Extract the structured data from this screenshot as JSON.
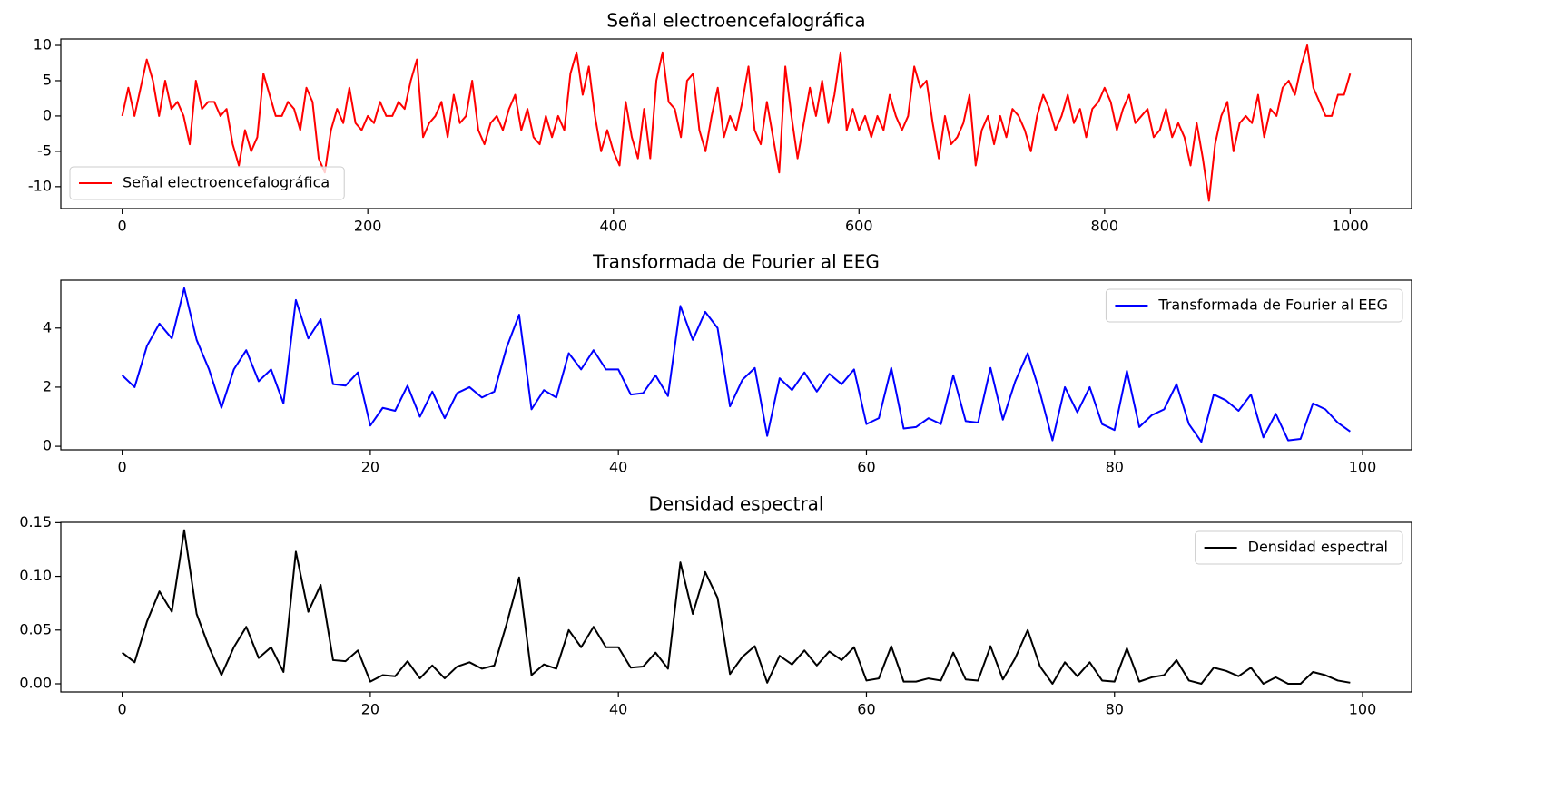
{
  "chart_data": [
    {
      "type": "line",
      "title": "Señal electroencefalográfica",
      "x": [
        0,
        5,
        10,
        15,
        20,
        25,
        30,
        35,
        40,
        45,
        50,
        55,
        60,
        65,
        70,
        75,
        80,
        85,
        90,
        95,
        100,
        105,
        110,
        115,
        120,
        125,
        130,
        135,
        140,
        145,
        150,
        155,
        160,
        165,
        170,
        175,
        180,
        185,
        190,
        195,
        200,
        205,
        210,
        215,
        220,
        225,
        230,
        235,
        240,
        245,
        250,
        255,
        260,
        265,
        270,
        275,
        280,
        285,
        290,
        295,
        300,
        305,
        310,
        315,
        320,
        325,
        330,
        335,
        340,
        345,
        350,
        355,
        360,
        365,
        370,
        375,
        380,
        385,
        390,
        395,
        400,
        405,
        410,
        415,
        420,
        425,
        430,
        435,
        440,
        445,
        450,
        455,
        460,
        465,
        470,
        475,
        480,
        485,
        490,
        495,
        500,
        505,
        510,
        515,
        520,
        525,
        530,
        535,
        540,
        545,
        550,
        555,
        560,
        565,
        570,
        575,
        580,
        585,
        590,
        595,
        600,
        605,
        610,
        615,
        620,
        625,
        630,
        635,
        640,
        645,
        650,
        655,
        660,
        665,
        670,
        675,
        680,
        685,
        690,
        695,
        700,
        705,
        710,
        715,
        720,
        725,
        730,
        735,
        740,
        745,
        750,
        755,
        760,
        765,
        770,
        775,
        780,
        785,
        790,
        795,
        800,
        805,
        810,
        815,
        820,
        825,
        830,
        835,
        840,
        845,
        850,
        855,
        860,
        865,
        870,
        875,
        880,
        885,
        890,
        895,
        900,
        905,
        910,
        915,
        920,
        925,
        930,
        935,
        940,
        945,
        950,
        955,
        960,
        965,
        970,
        975,
        980,
        985,
        990,
        995,
        1000
      ],
      "series": [
        {
          "name": "Señal electroencefalográfica",
          "color": "#ff0000",
          "values": [
            0,
            4,
            0,
            4,
            8,
            5,
            0,
            5,
            1,
            2,
            0,
            -4,
            5,
            1,
            2,
            2,
            0,
            1,
            -4,
            -7,
            -2,
            -5,
            -3,
            6,
            3,
            0,
            0,
            2,
            1,
            -2,
            4,
            2,
            -6,
            -8,
            -2,
            1,
            -1,
            4,
            -1,
            -2,
            0,
            -1,
            2,
            0,
            0,
            2,
            1,
            5,
            8,
            -3,
            -1,
            0,
            2,
            -3,
            3,
            -1,
            0,
            5,
            -2,
            -4,
            -1,
            0,
            -2,
            1,
            3,
            -2,
            1,
            -3,
            -4,
            0,
            -3,
            0,
            -2,
            6,
            9,
            3,
            7,
            0,
            -5,
            -2,
            -5,
            -7,
            2,
            -3,
            -6,
            1,
            -6,
            5,
            9,
            2,
            1,
            -3,
            5,
            6,
            -2,
            -5,
            0,
            4,
            -3,
            0,
            -2,
            2,
            7,
            -2,
            -4,
            2,
            -3,
            -8,
            7,
            0,
            -6,
            -1,
            4,
            0,
            5,
            -1,
            3,
            9,
            -2,
            1,
            -2,
            0,
            -3,
            0,
            -2,
            3,
            0,
            -2,
            0,
            7,
            4,
            5,
            -1,
            -6,
            0,
            -4,
            -3,
            -1,
            3,
            -7,
            -2,
            0,
            -4,
            0,
            -3,
            1,
            0,
            -2,
            -5,
            0,
            3,
            1,
            -2,
            0,
            3,
            -1,
            1,
            -3,
            1,
            2,
            4,
            2,
            -2,
            1,
            3,
            -1,
            0,
            1,
            -3,
            -2,
            1,
            -3,
            -1,
            -3,
            -7,
            -1,
            -6,
            -12,
            -4,
            0,
            2,
            -5,
            -1,
            0,
            -1,
            3,
            -3,
            1,
            0,
            4,
            5,
            3,
            7,
            10,
            4,
            2,
            0,
            0,
            3,
            3,
            6
          ]
        }
      ],
      "xlim": [
        -50,
        1050
      ],
      "ylim": [
        -13.1,
        10.9
      ],
      "xticks": [
        0,
        200,
        400,
        600,
        800,
        1000
      ],
      "yticks": [
        -10,
        -5,
        0,
        5,
        10
      ],
      "legend": "lower left"
    },
    {
      "type": "line",
      "title": "Transformada de Fourier al EEG",
      "x": [
        0,
        1,
        2,
        3,
        4,
        5,
        6,
        7,
        8,
        9,
        10,
        11,
        12,
        13,
        14,
        15,
        16,
        17,
        18,
        19,
        20,
        21,
        22,
        23,
        24,
        25,
        26,
        27,
        28,
        29,
        30,
        31,
        32,
        33,
        34,
        35,
        36,
        37,
        38,
        39,
        40,
        41,
        42,
        43,
        44,
        45,
        46,
        47,
        48,
        49,
        50,
        51,
        52,
        53,
        54,
        55,
        56,
        57,
        58,
        59,
        60,
        61,
        62,
        63,
        64,
        65,
        66,
        67,
        68,
        69,
        70,
        71,
        72,
        73,
        74,
        75,
        76,
        77,
        78,
        79,
        80,
        81,
        82,
        83,
        84,
        85,
        86,
        87,
        88,
        89,
        90,
        91,
        92,
        93,
        94,
        95,
        96,
        97,
        98,
        99
      ],
      "series": [
        {
          "name": "Transformada de Fourier al EEG",
          "color": "#0000ff",
          "values": [
            2.4,
            2.0,
            3.4,
            4.15,
            3.65,
            5.35,
            3.6,
            2.6,
            1.3,
            2.6,
            3.25,
            2.2,
            2.6,
            1.45,
            4.95,
            3.65,
            4.3,
            2.1,
            2.05,
            2.5,
            0.7,
            1.3,
            1.2,
            2.05,
            1.0,
            1.85,
            0.95,
            1.8,
            2.0,
            1.65,
            1.85,
            3.35,
            4.45,
            1.25,
            1.9,
            1.65,
            3.15,
            2.6,
            3.25,
            2.6,
            2.6,
            1.75,
            1.8,
            2.4,
            1.7,
            4.75,
            3.6,
            4.55,
            4.0,
            1.35,
            2.25,
            2.65,
            0.35,
            2.3,
            1.9,
            2.5,
            1.85,
            2.45,
            2.1,
            2.6,
            0.75,
            0.95,
            2.65,
            0.6,
            0.65,
            0.95,
            0.75,
            2.4,
            0.85,
            0.8,
            2.65,
            0.9,
            2.2,
            3.15,
            1.8,
            0.2,
            2.0,
            1.15,
            2.0,
            0.75,
            0.55,
            2.55,
            0.65,
            1.05,
            1.25,
            2.1,
            0.75,
            0.15,
            1.75,
            1.55,
            1.2,
            1.75,
            0.3,
            1.1,
            0.2,
            0.25,
            1.45,
            1.25,
            0.8,
            0.5
          ]
        }
      ],
      "xlim": [
        -4.95,
        103.95
      ],
      "ylim": [
        -0.12,
        5.62
      ],
      "xticks": [
        0,
        20,
        40,
        60,
        80,
        100
      ],
      "yticks": [
        0,
        2,
        4
      ],
      "legend": "upper right"
    },
    {
      "type": "line",
      "title": "Densidad espectral",
      "x": [
        0,
        1,
        2,
        3,
        4,
        5,
        6,
        7,
        8,
        9,
        10,
        11,
        12,
        13,
        14,
        15,
        16,
        17,
        18,
        19,
        20,
        21,
        22,
        23,
        24,
        25,
        26,
        27,
        28,
        29,
        30,
        31,
        32,
        33,
        34,
        35,
        36,
        37,
        38,
        39,
        40,
        41,
        42,
        43,
        44,
        45,
        46,
        47,
        48,
        49,
        50,
        51,
        52,
        53,
        54,
        55,
        56,
        57,
        58,
        59,
        60,
        61,
        62,
        63,
        64,
        65,
        66,
        67,
        68,
        69,
        70,
        71,
        72,
        73,
        74,
        75,
        76,
        77,
        78,
        79,
        80,
        81,
        82,
        83,
        84,
        85,
        86,
        87,
        88,
        89,
        90,
        91,
        92,
        93,
        94,
        95,
        96,
        97,
        98,
        99
      ],
      "series": [
        {
          "name": "Densidad espectral",
          "color": "#000000",
          "values": [
            0.029,
            0.02,
            0.058,
            0.086,
            0.067,
            0.143,
            0.065,
            0.034,
            0.008,
            0.034,
            0.053,
            0.024,
            0.034,
            0.011,
            0.123,
            0.067,
            0.092,
            0.022,
            0.021,
            0.031,
            0.002,
            0.008,
            0.007,
            0.021,
            0.005,
            0.017,
            0.005,
            0.016,
            0.02,
            0.014,
            0.017,
            0.056,
            0.099,
            0.008,
            0.018,
            0.014,
            0.05,
            0.034,
            0.053,
            0.034,
            0.034,
            0.015,
            0.016,
            0.029,
            0.014,
            0.113,
            0.065,
            0.104,
            0.08,
            0.009,
            0.025,
            0.035,
            0.001,
            0.026,
            0.018,
            0.031,
            0.017,
            0.03,
            0.022,
            0.034,
            0.003,
            0.005,
            0.035,
            0.002,
            0.002,
            0.005,
            0.003,
            0.029,
            0.004,
            0.003,
            0.035,
            0.004,
            0.024,
            0.05,
            0.016,
            0,
            0.02,
            0.007,
            0.02,
            0.003,
            0.002,
            0.033,
            0.002,
            0.006,
            0.008,
            0.022,
            0.003,
            0,
            0.015,
            0.012,
            0.007,
            0.015,
            0,
            0.006,
            0,
            0,
            0.011,
            0.008,
            0.003,
            0.001
          ]
        }
      ],
      "xlim": [
        -4.95,
        103.95
      ],
      "ylim": [
        -0.0076,
        0.1503
      ],
      "xticks": [
        0,
        20,
        40,
        60,
        80,
        100
      ],
      "yticks": [
        {
          "value": 0,
          "label": "0.00"
        },
        {
          "value": 0.05,
          "label": "0.05"
        },
        {
          "value": 0.1,
          "label": "0.10"
        },
        {
          "value": 0.15,
          "label": "0.15"
        }
      ],
      "legend": "upper right"
    }
  ]
}
